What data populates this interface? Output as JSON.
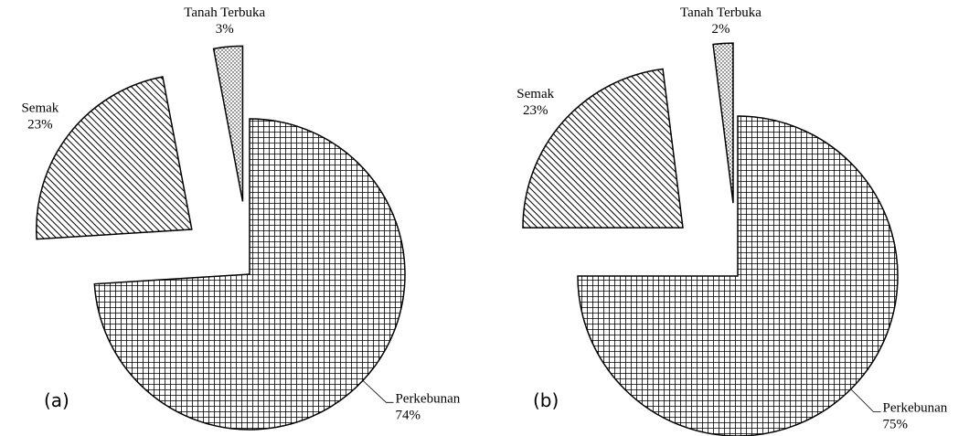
{
  "chart_data": [
    {
      "type": "pie",
      "panel": "(a)",
      "categories": [
        "Perkebunan",
        "Semak",
        "Tanah Terbuka"
      ],
      "values": [
        74,
        23,
        3
      ],
      "value_labels": [
        "74%",
        "23%",
        "3%"
      ],
      "patterns": [
        "grid",
        "hatch",
        "dots"
      ]
    },
    {
      "type": "pie",
      "panel": "(b)",
      "categories": [
        "Perkebunan",
        "Semak",
        "Tanah Terbuka"
      ],
      "values": [
        75,
        23,
        2
      ],
      "value_labels": [
        "75%",
        "23%",
        "2%"
      ],
      "patterns": [
        "grid",
        "hatch",
        "dots"
      ]
    }
  ]
}
